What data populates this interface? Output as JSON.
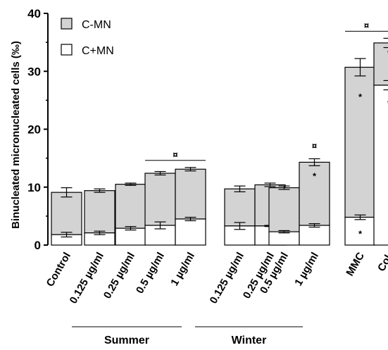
{
  "chart_data": {
    "type": "bar",
    "stacked": true,
    "ylabel": "Binucleated micronucleated cells (‰)",
    "ylim": [
      0,
      40
    ],
    "yticks": [
      0,
      10,
      20,
      30,
      40
    ],
    "grid": false,
    "legend_position": "top-left",
    "categories": [
      "Control",
      "0.125 µg/ml",
      "0.25 µg/ml",
      "0.5 µg/ml",
      "1 µg/ml",
      "0.125 µg/ml",
      "0.25 µg/ml",
      "0.5 µg/ml",
      "1 µg/ml",
      "MMC",
      "Col."
    ],
    "series": [
      {
        "name": "C+MN",
        "color": "#ffffff",
        "values": [
          1.8,
          2.1,
          2.9,
          3.4,
          4.5,
          3.3,
          3.3,
          2.3,
          3.4,
          4.8,
          27.6
        ],
        "errors": [
          0.4,
          0.3,
          0.3,
          0.6,
          0.3,
          0.6,
          0.1,
          0.2,
          0.3,
          0.4,
          0.8
        ]
      },
      {
        "name": "C-MN",
        "color": "#d3d3d3",
        "values": [
          7.3,
          7.3,
          7.6,
          9.0,
          8.6,
          6.4,
          7.1,
          7.6,
          10.9,
          25.9,
          7.3
        ],
        "errors": [
          0.8,
          0.3,
          0.2,
          0.3,
          0.3,
          0.5,
          0.3,
          0.3,
          0.6,
          1.5,
          0.8
        ]
      }
    ],
    "groups": [
      {
        "label": "Summer",
        "from": 1,
        "to": 4
      },
      {
        "label": "Winter",
        "from": 5,
        "to": 8
      }
    ],
    "significance": [
      {
        "symbol": "¤",
        "from": 3,
        "to": 4
      },
      {
        "symbol": "¤",
        "from": 8,
        "to": 8
      },
      {
        "symbol": "¤",
        "from": 9,
        "to": 10
      }
    ],
    "asterisks": [
      {
        "index": 8,
        "series": "C-MN"
      },
      {
        "index": 9,
        "series": "C-MN"
      },
      {
        "index": 9,
        "series": "C+MN"
      },
      {
        "index": 10,
        "series": "C-MN"
      },
      {
        "index": 10,
        "series": "C+MN"
      }
    ]
  }
}
